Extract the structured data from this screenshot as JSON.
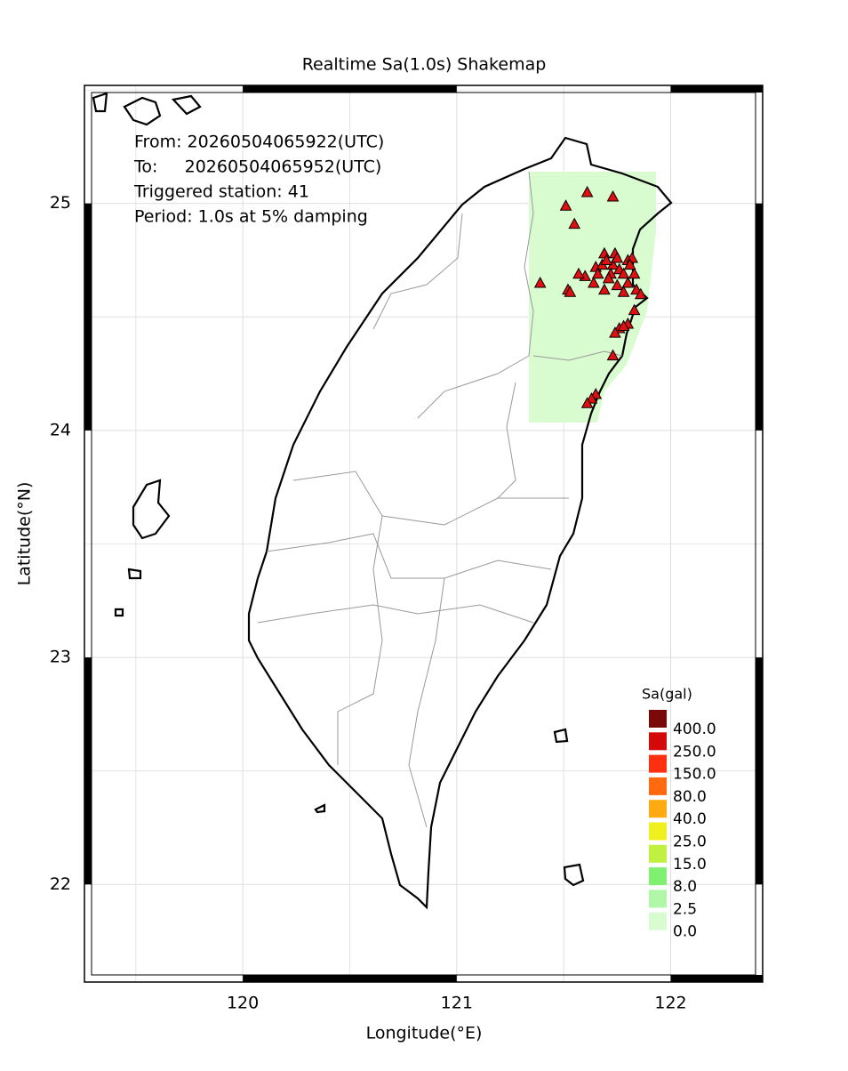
{
  "map": {
    "title": "Realtime Sa(1.0s) Shakemap",
    "info": [
      "From: 20260504065922(UTC)",
      "To:     20260504065952(UTC)",
      "Triggered station: 41",
      "Period: 1.0s at 5% damping"
    ],
    "xlabel": "Longitude(°E)",
    "ylabel": "Latitude(°N)",
    "xlim": [
      119.26,
      122.43
    ],
    "ylim": [
      21.57,
      25.52
    ],
    "xticks": [
      120,
      121,
      122
    ],
    "yticks": [
      22,
      23,
      24,
      25
    ],
    "grid": true,
    "legend": {
      "title": "Sa(gal)",
      "items": [
        {
          "label": "400.0",
          "color": "#7a0a0a"
        },
        {
          "label": "250.0",
          "color": "#d40a0a"
        },
        {
          "label": "150.0",
          "color": "#ff3010"
        },
        {
          "label": "80.0",
          "color": "#ff6a10"
        },
        {
          "label": "40.0",
          "color": "#ffaa10"
        },
        {
          "label": "25.0",
          "color": "#f0f020"
        },
        {
          "label": "15.0",
          "color": "#c0f040"
        },
        {
          "label": "8.0",
          "color": "#80f070"
        },
        {
          "label": "2.5",
          "color": "#b0f8a8"
        },
        {
          "label": "0.0",
          "color": "#d8fcd0"
        }
      ]
    },
    "stations": {
      "color": "#e01010",
      "lon": [
        121.51,
        121.61,
        121.73,
        121.55,
        121.39,
        121.52,
        121.53,
        121.69,
        121.74,
        121.8,
        121.82,
        121.65,
        121.68,
        121.73,
        121.76,
        121.78,
        121.83,
        121.6,
        121.64,
        121.69,
        121.75,
        121.8,
        121.84,
        121.86,
        121.83,
        121.8,
        121.76,
        121.74,
        121.73,
        121.65,
        121.63,
        121.61,
        121.72,
        121.78,
        121.71,
        121.66,
        121.75,
        121.7,
        121.81,
        121.57,
        121.78
      ],
      "lat": [
        24.99,
        25.05,
        25.03,
        24.91,
        24.65,
        24.62,
        24.61,
        24.78,
        24.78,
        24.75,
        24.76,
        24.72,
        24.73,
        24.73,
        24.71,
        24.69,
        24.69,
        24.68,
        24.65,
        24.62,
        24.64,
        24.65,
        24.62,
        24.6,
        24.53,
        24.47,
        24.45,
        24.43,
        24.33,
        24.16,
        24.14,
        24.12,
        24.69,
        24.61,
        24.67,
        24.69,
        24.76,
        24.75,
        24.73,
        24.69,
        24.46
      ]
    }
  }
}
